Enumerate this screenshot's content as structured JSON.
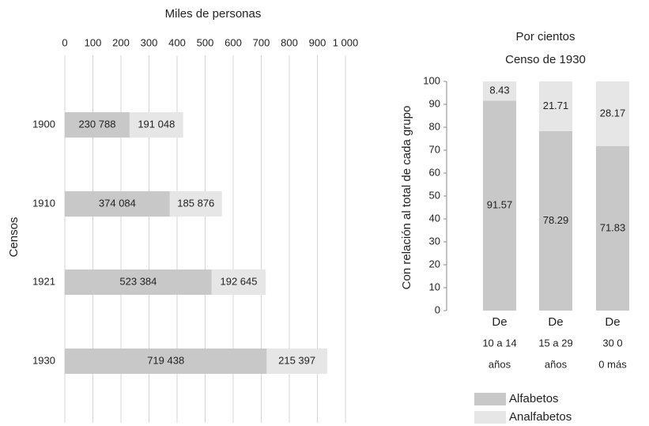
{
  "chart_data": [
    {
      "type": "hbar-stacked",
      "title": "Miles de personas",
      "y_label": "Censos",
      "categories": [
        "1900",
        "1910",
        "1921",
        "1930"
      ],
      "series": [
        {
          "name": "Alfabetos",
          "color": "#c8c8c8",
          "values": [
            230.788,
            374.084,
            523.384,
            719.438
          ],
          "value_labels": [
            "230 788",
            "374 084",
            "523 384",
            "719 438"
          ]
        },
        {
          "name": "Analfabetos",
          "color": "#e6e6e6",
          "values": [
            191.048,
            185.876,
            192.645,
            215.397
          ],
          "value_labels": [
            "191 048",
            "185 876",
            "192 645",
            "215 397"
          ]
        }
      ],
      "xlim": [
        0,
        1000
      ],
      "xticks": [
        0,
        100,
        200,
        300,
        400,
        500,
        600,
        700,
        800,
        900,
        {
          "value": 1000,
          "label": "1 000"
        }
      ],
      "grid": true
    },
    {
      "type": "bar-stacked",
      "title": "Por cientos",
      "subtitle": "Censo de 1930",
      "y_label": "Con relación al total de cada grupo",
      "categories": [
        [
          "De",
          "10 a 14",
          "años"
        ],
        [
          "De",
          "15 a 29",
          "años"
        ],
        [
          "De",
          "30 0",
          "0 más"
        ]
      ],
      "series": [
        {
          "name": "Alfabetos",
          "color": "#c8c8c8",
          "values": [
            91.57,
            78.29,
            71.83
          ]
        },
        {
          "name": "Analfabetos",
          "color": "#e6e6e6",
          "values": [
            8.43,
            21.71,
            28.17
          ]
        }
      ],
      "ylim": [
        0,
        100
      ],
      "yticks": [
        0,
        10,
        20,
        30,
        40,
        50,
        60,
        70,
        80,
        90,
        100
      ],
      "legend": "bottom"
    }
  ]
}
